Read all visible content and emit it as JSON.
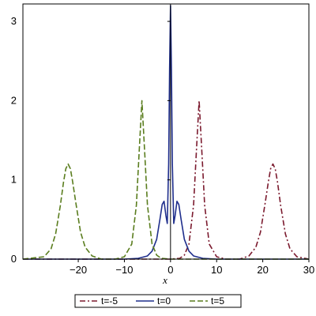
{
  "chart_data": {
    "type": "line",
    "title": "",
    "xlabel": "x",
    "ylabel": "",
    "xlim": [
      -32,
      30
    ],
    "ylim": [
      0,
      3.22
    ],
    "xticks": [
      -20,
      -10,
      0,
      10,
      20,
      30
    ],
    "yticks": [
      0,
      1,
      2,
      3
    ],
    "xtick_labels": [
      "−20",
      "−10",
      "0",
      "10",
      "20",
      "30"
    ],
    "ytick_labels": [
      "0",
      "1",
      "2",
      "3"
    ],
    "grid": false,
    "legend_position": "bottom",
    "series": [
      {
        "name": "t=-5",
        "color": "#7B1A2E",
        "dash": "dash-dot",
        "peaks": [
          {
            "x": 6.2,
            "height": 2.0
          },
          {
            "x": 22.2,
            "height": 1.2
          }
        ],
        "x": [
          -32,
          0,
          2,
          3,
          4,
          5,
          5.6,
          6.2,
          6.8,
          7.4,
          8.4,
          10,
          12,
          15,
          17,
          18.5,
          19.5,
          20.5,
          21.2,
          21.7,
          22.2,
          22.7,
          23.2,
          23.9,
          24.9,
          25.9,
          27.4,
          30
        ],
        "y": [
          0,
          0,
          0.01,
          0.05,
          0.19,
          0.68,
          1.35,
          2.0,
          1.35,
          0.68,
          0.19,
          0.03,
          0.0,
          0.0,
          0.04,
          0.15,
          0.34,
          0.7,
          0.97,
          1.14,
          1.2,
          1.14,
          0.97,
          0.67,
          0.32,
          0.13,
          0.03,
          0
        ]
      },
      {
        "name": "t=0",
        "color": "#1F2E8C",
        "dash": "solid",
        "peaks": [
          {
            "x": 0,
            "height": 3.2
          },
          {
            "x": -1.4,
            "height": 0.73
          },
          {
            "x": 1.4,
            "height": 0.73
          }
        ],
        "x": [
          -32,
          -10,
          -7,
          -5,
          -4,
          -3,
          -2.3,
          -1.8,
          -1.4,
          -1.0,
          -0.7,
          -0.4,
          -0.2,
          0,
          0.2,
          0.4,
          0.7,
          1.0,
          1.4,
          1.8,
          2.3,
          3,
          4,
          5,
          7,
          10,
          30
        ],
        "y": [
          0,
          0,
          0.01,
          0.04,
          0.1,
          0.25,
          0.5,
          0.69,
          0.73,
          0.55,
          0.45,
          1.2,
          2.4,
          3.2,
          2.4,
          1.2,
          0.45,
          0.55,
          0.73,
          0.69,
          0.5,
          0.25,
          0.1,
          0.04,
          0.01,
          0,
          0
        ]
      },
      {
        "name": "t=5",
        "color": "#5A7D1E",
        "dash": "long-dash",
        "peaks": [
          {
            "x": -22.2,
            "height": 1.2
          },
          {
            "x": -6.2,
            "height": 2.0
          }
        ],
        "x": [
          -32,
          -27.4,
          -25.9,
          -24.9,
          -23.9,
          -23.2,
          -22.7,
          -22.2,
          -21.7,
          -21.2,
          -20.5,
          -19.5,
          -18.5,
          -17,
          -15,
          -12,
          -10,
          -8.4,
          -7.4,
          -6.8,
          -6.2,
          -5.6,
          -5.0,
          -4.0,
          -3.0,
          -2.0,
          0,
          30
        ],
        "y": [
          0,
          0.03,
          0.13,
          0.32,
          0.67,
          0.97,
          1.14,
          1.2,
          1.14,
          0.97,
          0.7,
          0.34,
          0.15,
          0.04,
          0.0,
          0.0,
          0.03,
          0.19,
          0.68,
          1.35,
          2.0,
          1.35,
          0.68,
          0.19,
          0.05,
          0.01,
          0,
          0
        ]
      }
    ]
  }
}
